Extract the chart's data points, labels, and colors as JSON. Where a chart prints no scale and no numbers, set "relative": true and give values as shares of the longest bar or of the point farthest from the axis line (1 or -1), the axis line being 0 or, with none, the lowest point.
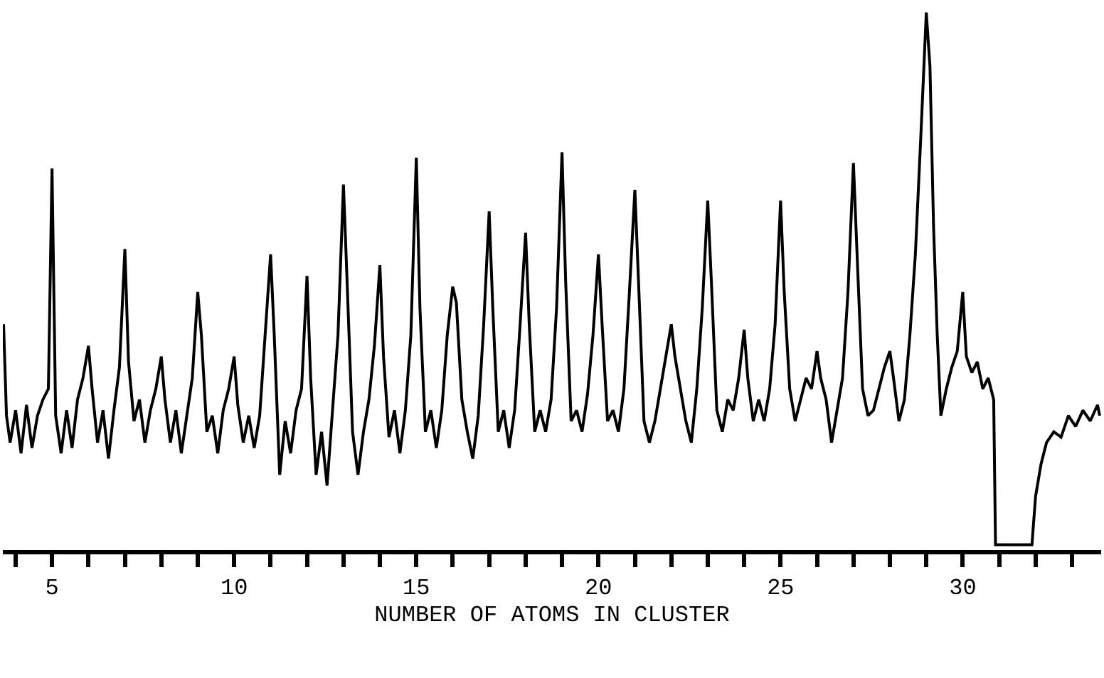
{
  "chart_data": {
    "type": "line",
    "relative": true,
    "xlabel": "NUMBER OF ATOMS IN CLUSTER",
    "xlim": [
      3.65,
      33.8
    ],
    "xticks": [
      {
        "value": 4,
        "label": null
      },
      5,
      {
        "value": 6,
        "label": null
      },
      {
        "value": 7,
        "label": null
      },
      {
        "value": 8,
        "label": null
      },
      {
        "value": 9,
        "label": null
      },
      10,
      {
        "value": 11,
        "label": null
      },
      {
        "value": 12,
        "label": null
      },
      {
        "value": 13,
        "label": null
      },
      {
        "value": 14,
        "label": null
      },
      15,
      {
        "value": 16,
        "label": null
      },
      {
        "value": 17,
        "label": null
      },
      {
        "value": 18,
        "label": null
      },
      {
        "value": 19,
        "label": null
      },
      20,
      {
        "value": 21,
        "label": null
      },
      {
        "value": 22,
        "label": null
      },
      {
        "value": 23,
        "label": null
      },
      {
        "value": 24,
        "label": null
      },
      25,
      {
        "value": 26,
        "label": null
      },
      {
        "value": 27,
        "label": null
      },
      {
        "value": 28,
        "label": null
      },
      {
        "value": 29,
        "label": null
      },
      30,
      {
        "value": 31,
        "label": null
      },
      {
        "value": 32,
        "label": null
      },
      {
        "value": 33,
        "label": null
      }
    ],
    "grid": false,
    "marker": "none",
    "line_style": "solid",
    "series": [
      {
        "color": "#000000",
        "x": [
          3.67,
          3.75,
          3.85,
          4.0,
          4.15,
          4.3,
          4.45,
          4.6,
          4.75,
          4.9,
          5.0,
          5.1,
          5.25,
          5.4,
          5.55,
          5.7,
          5.85,
          6.0,
          6.1,
          6.25,
          6.4,
          6.55,
          6.7,
          6.85,
          7.0,
          7.1,
          7.25,
          7.4,
          7.55,
          7.7,
          7.85,
          8.0,
          8.1,
          8.25,
          8.4,
          8.55,
          8.7,
          8.85,
          9.0,
          9.1,
          9.25,
          9.4,
          9.55,
          9.7,
          9.85,
          10.0,
          10.1,
          10.25,
          10.4,
          10.55,
          10.7,
          10.85,
          11.0,
          11.1,
          11.25,
          11.4,
          11.55,
          11.7,
          11.85,
          12.0,
          12.1,
          12.25,
          12.4,
          12.55,
          12.7,
          12.85,
          13.0,
          13.1,
          13.25,
          13.4,
          13.55,
          13.7,
          13.85,
          14.0,
          14.1,
          14.25,
          14.4,
          14.55,
          14.7,
          14.85,
          15.0,
          15.1,
          15.25,
          15.4,
          15.55,
          15.7,
          15.85,
          16.0,
          16.1,
          16.25,
          16.4,
          16.55,
          16.7,
          16.85,
          17.0,
          17.1,
          17.25,
          17.4,
          17.55,
          17.7,
          17.85,
          18.0,
          18.1,
          18.25,
          18.4,
          18.55,
          18.7,
          18.85,
          19.0,
          19.1,
          19.25,
          19.4,
          19.55,
          19.7,
          19.85,
          20.0,
          20.1,
          20.25,
          20.4,
          20.55,
          20.7,
          20.85,
          21.0,
          21.1,
          21.25,
          21.4,
          21.55,
          21.7,
          21.85,
          22.0,
          22.1,
          22.25,
          22.4,
          22.55,
          22.7,
          22.85,
          23.0,
          23.1,
          23.25,
          23.4,
          23.55,
          23.7,
          23.85,
          24.0,
          24.1,
          24.25,
          24.4,
          24.55,
          24.7,
          24.85,
          25.0,
          25.1,
          25.25,
          25.4,
          25.55,
          25.7,
          25.85,
          26.0,
          26.1,
          26.25,
          26.4,
          26.55,
          26.7,
          26.85,
          27.0,
          27.1,
          27.25,
          27.4,
          27.55,
          27.7,
          27.85,
          28.0,
          28.1,
          28.25,
          28.4,
          28.55,
          28.7,
          28.85,
          29.0,
          29.1,
          29.2,
          29.3,
          29.4,
          29.55,
          29.7,
          29.85,
          30.0,
          30.1,
          30.25,
          30.4,
          30.55,
          30.7,
          30.85,
          30.9,
          31.9,
          32.0,
          32.15,
          32.3,
          32.5,
          32.7,
          32.9,
          33.1,
          33.3,
          33.5,
          33.7,
          33.76
        ],
        "values": [
          0.42,
          0.25,
          0.2,
          0.26,
          0.18,
          0.27,
          0.19,
          0.25,
          0.28,
          0.3,
          0.71,
          0.25,
          0.18,
          0.26,
          0.19,
          0.28,
          0.32,
          0.38,
          0.3,
          0.2,
          0.26,
          0.17,
          0.26,
          0.34,
          0.56,
          0.35,
          0.24,
          0.28,
          0.2,
          0.26,
          0.3,
          0.36,
          0.28,
          0.2,
          0.26,
          0.18,
          0.25,
          0.32,
          0.48,
          0.4,
          0.22,
          0.25,
          0.18,
          0.26,
          0.3,
          0.36,
          0.27,
          0.2,
          0.25,
          0.19,
          0.25,
          0.4,
          0.55,
          0.4,
          0.14,
          0.24,
          0.18,
          0.26,
          0.3,
          0.51,
          0.32,
          0.14,
          0.22,
          0.12,
          0.26,
          0.4,
          0.68,
          0.5,
          0.22,
          0.14,
          0.22,
          0.28,
          0.38,
          0.53,
          0.36,
          0.21,
          0.26,
          0.18,
          0.26,
          0.4,
          0.73,
          0.45,
          0.22,
          0.26,
          0.19,
          0.26,
          0.4,
          0.49,
          0.46,
          0.28,
          0.22,
          0.17,
          0.25,
          0.42,
          0.63,
          0.45,
          0.22,
          0.26,
          0.19,
          0.26,
          0.42,
          0.59,
          0.42,
          0.22,
          0.26,
          0.22,
          0.28,
          0.45,
          0.74,
          0.5,
          0.24,
          0.26,
          0.22,
          0.29,
          0.4,
          0.55,
          0.42,
          0.24,
          0.26,
          0.22,
          0.3,
          0.48,
          0.67,
          0.5,
          0.24,
          0.2,
          0.24,
          0.3,
          0.36,
          0.42,
          0.36,
          0.3,
          0.24,
          0.2,
          0.3,
          0.45,
          0.65,
          0.5,
          0.26,
          0.22,
          0.28,
          0.26,
          0.32,
          0.41,
          0.32,
          0.24,
          0.28,
          0.24,
          0.3,
          0.42,
          0.65,
          0.48,
          0.3,
          0.24,
          0.28,
          0.32,
          0.3,
          0.37,
          0.32,
          0.28,
          0.2,
          0.26,
          0.32,
          0.48,
          0.72,
          0.55,
          0.3,
          0.25,
          0.26,
          0.3,
          0.34,
          0.37,
          0.32,
          0.24,
          0.28,
          0.4,
          0.55,
          0.77,
          1.0,
          0.9,
          0.6,
          0.4,
          0.25,
          0.3,
          0.34,
          0.37,
          0.48,
          0.36,
          0.33,
          0.35,
          0.3,
          0.32,
          0.28,
          0.01,
          0.01,
          0.1,
          0.16,
          0.2,
          0.22,
          0.21,
          0.25,
          0.23,
          0.26,
          0.24,
          0.27,
          0.25
        ]
      }
    ]
  }
}
